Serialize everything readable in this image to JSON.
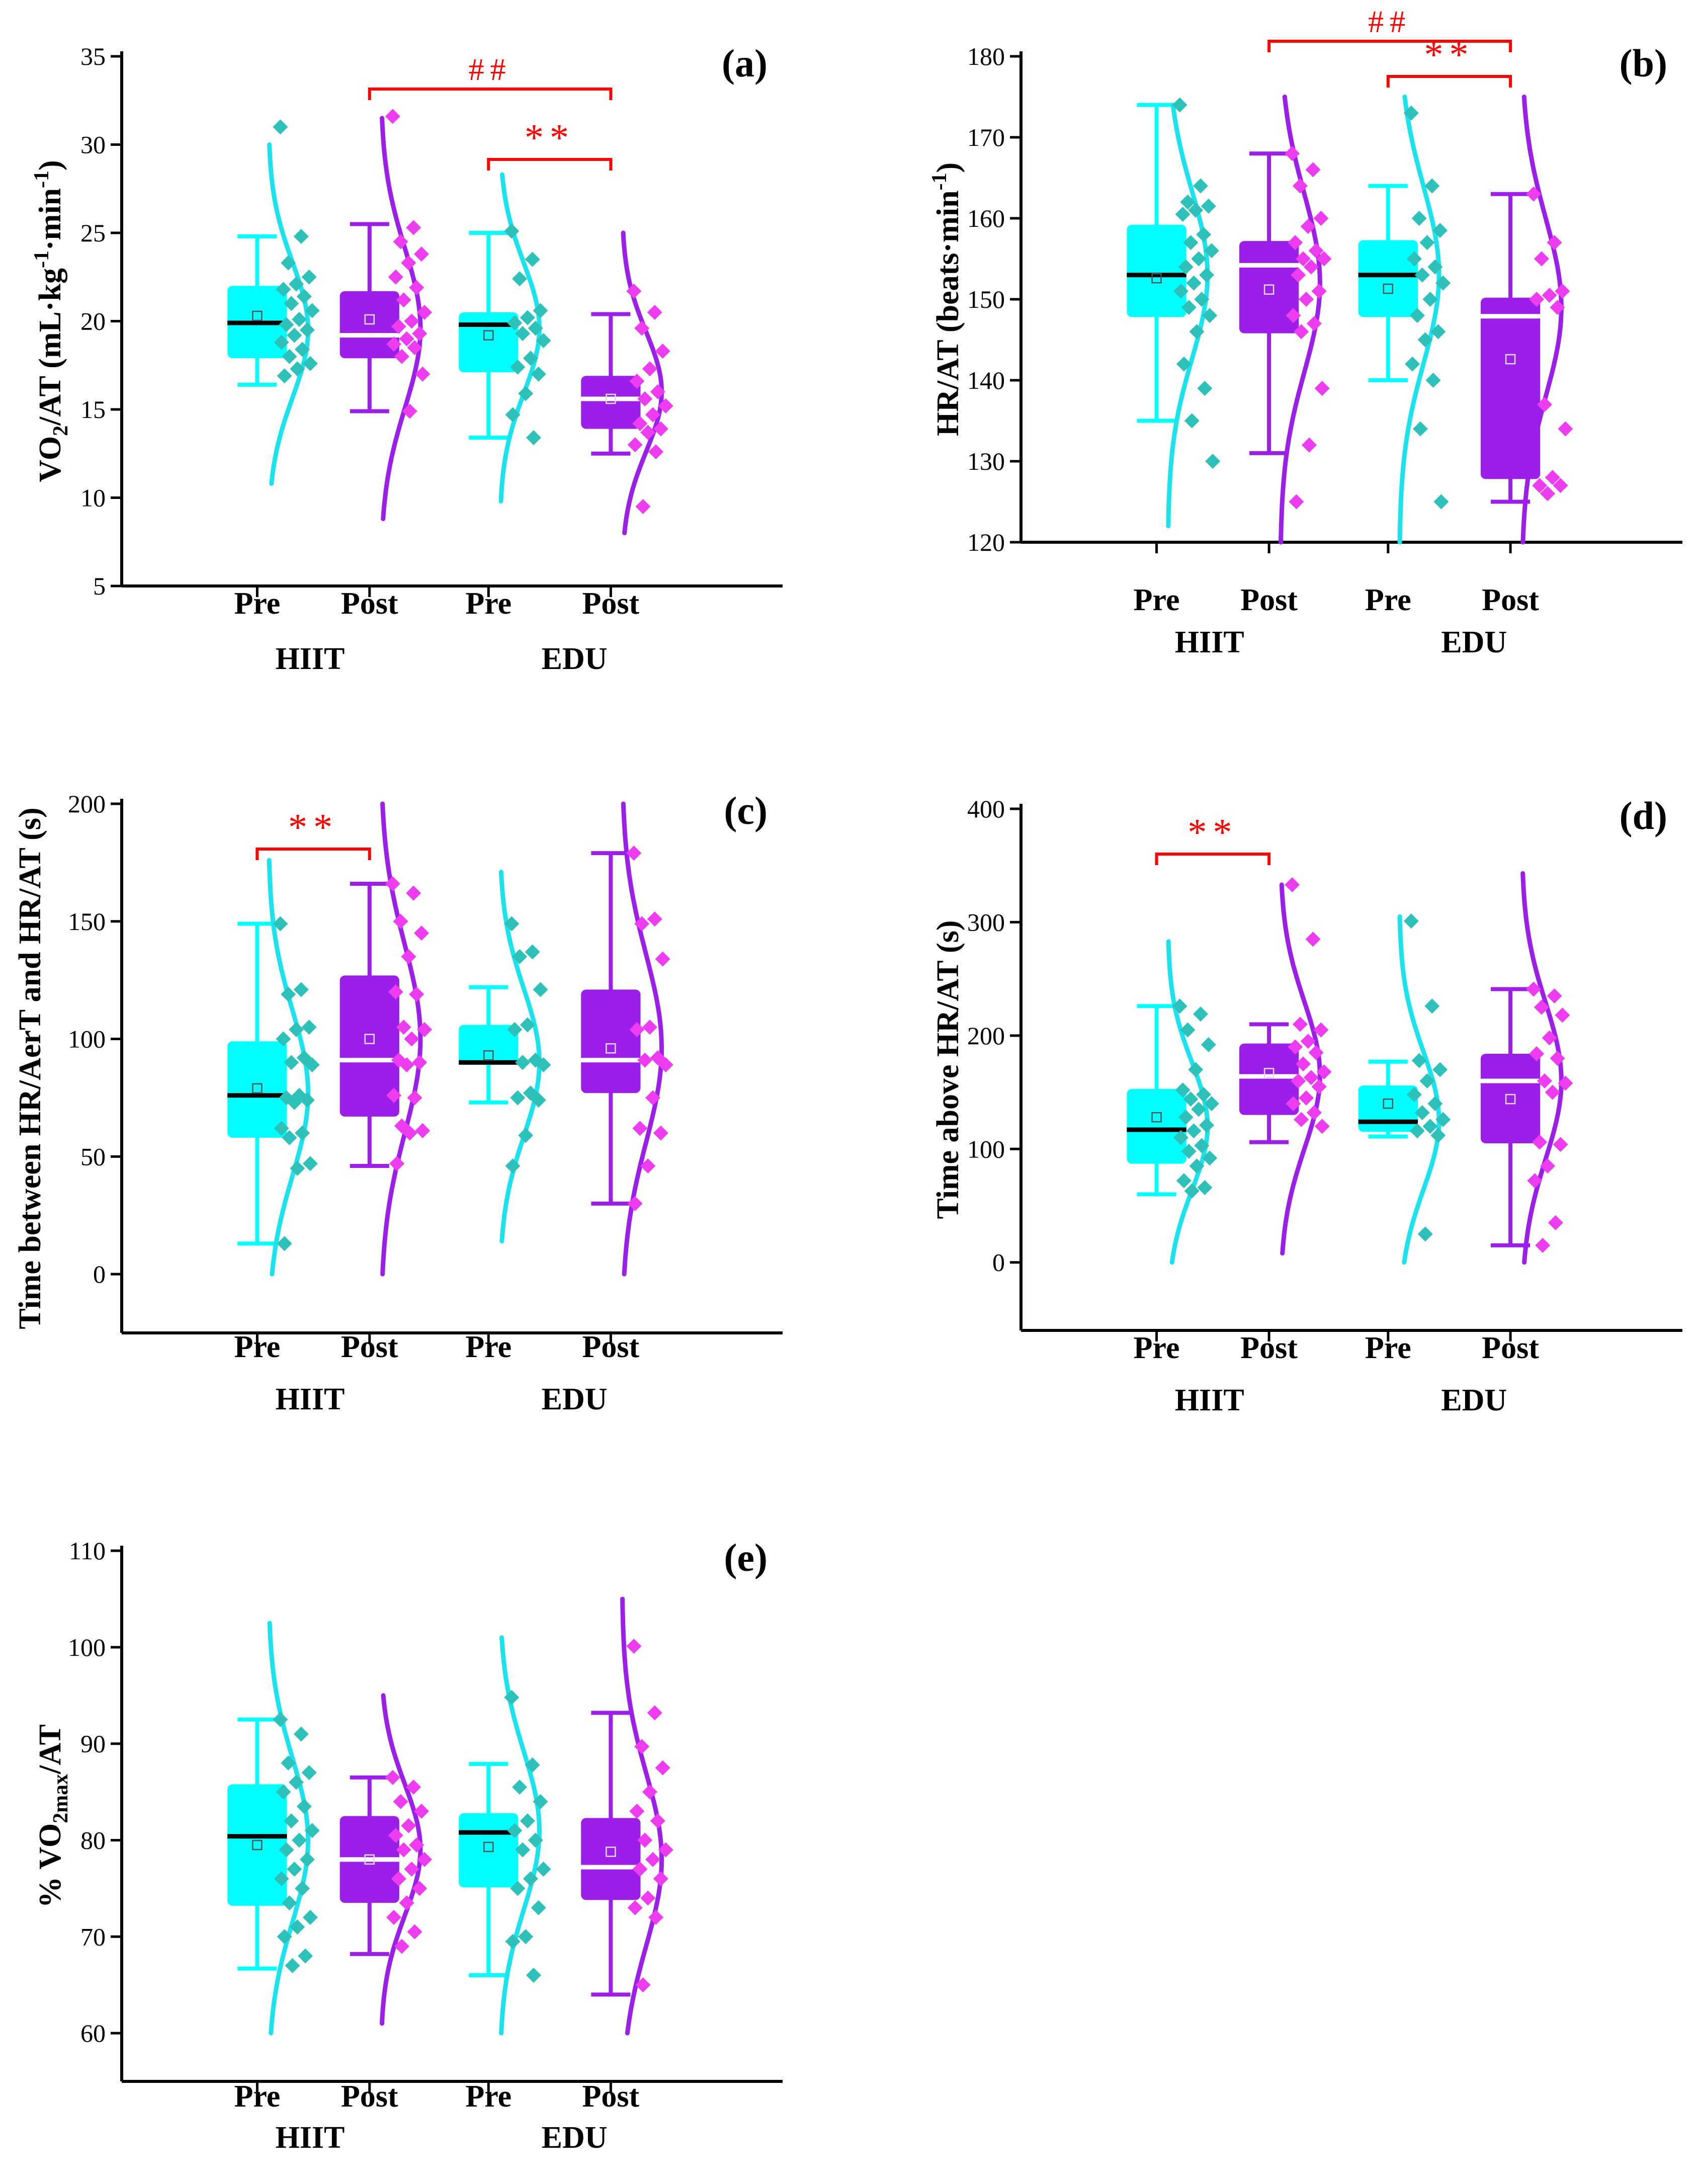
{
  "figure": {
    "category_labels": [
      "Pre",
      "Post",
      "Pre",
      "Post"
    ],
    "group_labels": [
      "HIIT",
      "EDU"
    ],
    "colors": {
      "pre_box": "#00ffff",
      "pre_curve": "#1ae3ee",
      "pre_points": "#2ec1b9",
      "post_box": "#9b1fe8",
      "post_curve": "#9b1fe8",
      "post_points": "#ee3df0",
      "bracket": "#ff0000",
      "pre_median": "#000000",
      "post_median": "#ffffff"
    }
  },
  "chart_data": [
    {
      "panel": "(a)",
      "type": "box",
      "ylabel_main": "VO",
      "ylabel_sub": "2",
      "ylabel_rest": "/AT (mL·kg",
      "ylabel_sup1": "-1",
      "ylabel_mid": "·min",
      "ylabel_sup2": "-1",
      "ylabel_end": ")",
      "ylim": [
        5,
        35
      ],
      "yticks": [
        5,
        10,
        15,
        20,
        25,
        30,
        35
      ],
      "boxes": [
        {
          "q1": 17.9,
          "q3": 22.0,
          "median": 19.9,
          "mean": 20.3,
          "whisker_low": 16.4,
          "whisker_high": 24.8,
          "points": [
            31.0,
            24.8,
            23.3,
            22.5,
            22.1,
            21.8,
            21.4,
            21.0,
            20.6,
            20.1,
            19.8,
            19.5,
            19.2,
            18.8,
            18.4,
            18.0,
            17.6,
            17.3,
            16.9
          ],
          "curve_range": [
            10.8,
            30.0
          ],
          "curve_peak": 19.5
        },
        {
          "q1": 17.9,
          "q3": 21.7,
          "median": 19.2,
          "mean": 20.1,
          "whisker_low": 14.9,
          "whisker_high": 25.5,
          "points": [
            31.6,
            25.3,
            24.5,
            23.8,
            23.3,
            22.5,
            21.9,
            21.2,
            20.5,
            20.0,
            19.7,
            19.3,
            19.0,
            18.7,
            18.5,
            18.0,
            17.0,
            14.9
          ],
          "curve_range": [
            8.8,
            31.5
          ],
          "curve_peak": 19.6
        },
        {
          "q1": 17.1,
          "q3": 20.5,
          "median": 19.8,
          "mean": 19.2,
          "whisker_low": 13.4,
          "whisker_high": 25.0,
          "points": [
            25.1,
            23.5,
            22.4,
            20.6,
            20.2,
            19.9,
            19.6,
            19.3,
            18.9,
            17.9,
            17.4,
            17.0,
            15.9,
            14.7,
            13.4
          ],
          "curve_range": [
            9.8,
            28.3
          ],
          "curve_peak": 19.6
        },
        {
          "q1": 13.9,
          "q3": 16.9,
          "median": 15.6,
          "mean": 15.6,
          "whisker_low": 12.5,
          "whisker_high": 20.4,
          "points": [
            21.7,
            20.5,
            19.6,
            18.3,
            17.3,
            16.6,
            16.0,
            15.6,
            15.2,
            14.7,
            14.2,
            13.9,
            13.7,
            13.0,
            12.6,
            9.5
          ],
          "curve_range": [
            8.0,
            25.0
          ],
          "curve_peak": 16.0
        }
      ],
      "brackets": [
        {
          "from": 1,
          "to": 3,
          "label": "##"
        },
        {
          "from": 2,
          "to": 3,
          "label": "**"
        }
      ]
    },
    {
      "panel": "(b)",
      "type": "box",
      "ylabel_main": "HR/AT (beats·min",
      "ylabel_sup1": "-1",
      "ylabel_end": ")",
      "ylim": [
        120,
        180
      ],
      "yticks": [
        120,
        130,
        140,
        150,
        160,
        170,
        180
      ],
      "boxes": [
        {
          "q1": 147.8,
          "q3": 159.2,
          "median": 153.0,
          "mean": 152.6,
          "whisker_low": 135.0,
          "whisker_high": 174.0,
          "points": [
            174.0,
            164.0,
            162.0,
            161.5,
            161.0,
            160.5,
            158.0,
            157.0,
            156.0,
            155.0,
            154.0,
            153.0,
            152.0,
            151.0,
            150.0,
            149.0,
            148.0,
            146.0,
            142.0,
            139.0,
            135.0,
            130.0
          ],
          "curve_range": [
            122.0,
            174.0
          ],
          "curve_peak": 153.0
        },
        {
          "q1": 145.8,
          "q3": 157.2,
          "median": 154.2,
          "mean": 151.2,
          "whisker_low": 131.0,
          "whisker_high": 168.0,
          "points": [
            168.0,
            166.0,
            164.0,
            160.0,
            159.0,
            157.0,
            156.0,
            155.0,
            155.0,
            154.0,
            153.0,
            151.0,
            150.0,
            148.0,
            147.0,
            146.0,
            139.0,
            132.0,
            125.0
          ],
          "curve_range": [
            120.0,
            175.0
          ],
          "curve_peak": 152.0
        },
        {
          "q1": 147.8,
          "q3": 157.3,
          "median": 153.0,
          "mean": 151.3,
          "whisker_low": 140.0,
          "whisker_high": 164.0,
          "points": [
            173.0,
            164.0,
            160.0,
            158.5,
            157.0,
            155.0,
            154.0,
            153.0,
            152.0,
            150.0,
            148.0,
            146.0,
            145.0,
            142.0,
            140.0,
            134.0,
            125.0
          ],
          "curve_range": [
            120.0,
            175.0
          ],
          "curve_peak": 153.0
        },
        {
          "q1": 127.8,
          "q3": 150.2,
          "median": 147.9,
          "mean": 142.6,
          "whisker_low": 125.0,
          "whisker_high": 163.0,
          "points": [
            163.0,
            157.0,
            155.0,
            151.0,
            150.5,
            150.0,
            149.0,
            137.0,
            134.0,
            128.0,
            127.0,
            127.0,
            126.0
          ],
          "curve_range": [
            120.0,
            175.0
          ],
          "curve_peak": 149.0
        }
      ],
      "brackets": [
        {
          "from": 1,
          "to": 3,
          "label": "##"
        },
        {
          "from": 2,
          "to": 3,
          "label": "**"
        }
      ]
    },
    {
      "panel": "(c)",
      "type": "box",
      "ylabel_main": "Time between HR/AerT and HR/AT (s)",
      "ylim": [
        -25,
        200
      ],
      "yticks": [
        0,
        50,
        100,
        150,
        200
      ],
      "boxes": [
        {
          "q1": 58.0,
          "q3": 99.0,
          "median": 76.0,
          "mean": 79.0,
          "whisker_low": 13.0,
          "whisker_high": 149.0,
          "points": [
            149.0,
            121.0,
            119.0,
            105.0,
            104.0,
            100.0,
            92.0,
            90.0,
            89.0,
            76.0,
            75.0,
            74.0,
            73.0,
            62.0,
            60.0,
            58.0,
            47.0,
            45.0,
            13.0
          ],
          "curve_range": [
            0.0,
            176.0
          ],
          "curve_peak": 77.0
        },
        {
          "q1": 67.0,
          "q3": 127.0,
          "median": 91.0,
          "mean": 100.0,
          "whisker_low": 46.0,
          "whisker_high": 166.0,
          "points": [
            166.0,
            162.0,
            150.0,
            145.0,
            135.0,
            120.0,
            119.0,
            105.0,
            104.0,
            100.0,
            91.0,
            90.0,
            89.0,
            76.0,
            75.0,
            63.0,
            61.0,
            60.0,
            47.0
          ],
          "curve_range": [
            0.0,
            200.0
          ],
          "curve_peak": 100.0
        },
        {
          "q1": 89.0,
          "q3": 106.0,
          "median": 90.0,
          "mean": 93.0,
          "whisker_low": 73.0,
          "whisker_high": 122.0,
          "points": [
            149.0,
            137.0,
            135.0,
            121.0,
            106.0,
            104.0,
            91.0,
            90.0,
            89.0,
            77.0,
            75.0,
            74.0,
            59.0,
            46.0
          ],
          "curve_range": [
            14.0,
            171.0
          ],
          "curve_peak": 90.0
        },
        {
          "q1": 77.0,
          "q3": 121.0,
          "median": 91.0,
          "mean": 96.0,
          "whisker_low": 30.0,
          "whisker_high": 179.0,
          "points": [
            179.0,
            151.0,
            149.0,
            134.0,
            105.0,
            104.0,
            92.0,
            91.0,
            89.0,
            75.0,
            62.0,
            60.0,
            46.0,
            30.0
          ],
          "curve_range": [
            0.0,
            200.0
          ],
          "curve_peak": 96.0
        }
      ],
      "brackets": [
        {
          "from": 0,
          "to": 1,
          "label": "**"
        }
      ]
    },
    {
      "panel": "(d)",
      "type": "box",
      "ylabel_main": "Time above HR/AT (s)",
      "ylim": [
        -60,
        400
      ],
      "yticks": [
        0,
        100,
        200,
        300,
        400
      ],
      "boxes": [
        {
          "q1": 87.0,
          "q3": 153.0,
          "median": 117.0,
          "mean": 128.0,
          "whisker_low": 60.0,
          "whisker_high": 226.0,
          "points": [
            226.0,
            219.0,
            205.0,
            192.0,
            170.0,
            152.0,
            148.0,
            144.0,
            140.0,
            135.0,
            128.0,
            121.0,
            116.0,
            110.0,
            103.0,
            98.0,
            92.0,
            85.0,
            72.0,
            66.0,
            63.0
          ],
          "curve_range": [
            0.0,
            283.0
          ],
          "curve_peak": 120.0
        },
        {
          "q1": 130.0,
          "q3": 193.0,
          "median": 164.0,
          "mean": 167.0,
          "whisker_low": 106.0,
          "whisker_high": 210.0,
          "points": [
            333.0,
            285.0,
            210.0,
            205.0,
            195.0,
            190.0,
            185.0,
            175.0,
            168.0,
            163.0,
            160.0,
            155.0,
            145.0,
            140.0,
            132.0,
            126.0,
            120.0
          ],
          "curve_range": [
            8.0,
            333.0
          ],
          "curve_peak": 165.0
        },
        {
          "q1": 115.0,
          "q3": 156.0,
          "median": 124.0,
          "mean": 140.0,
          "whisker_low": 111.0,
          "whisker_high": 177.0,
          "points": [
            301.0,
            226.0,
            178.0,
            170.0,
            160.0,
            148.0,
            140.0,
            132.0,
            126.0,
            120.0,
            116.0,
            112.0,
            25.0
          ],
          "curve_range": [
            0.0,
            305.0
          ],
          "curve_peak": 125.0
        },
        {
          "q1": 105.0,
          "q3": 184.0,
          "median": 160.0,
          "mean": 144.0,
          "whisker_low": 15.0,
          "whisker_high": 241.0,
          "points": [
            241.0,
            235.0,
            225.0,
            218.0,
            198.0,
            184.0,
            180.0,
            160.0,
            158.0,
            150.0,
            106.0,
            104.0,
            85.0,
            72.0,
            35.0,
            15.0
          ],
          "curve_range": [
            0.0,
            343.0
          ],
          "curve_peak": 160.0
        }
      ],
      "brackets": [
        {
          "from": 0,
          "to": 1,
          "label": "**"
        }
      ]
    },
    {
      "panel": "(e)",
      "type": "box",
      "ylabel_main": "% VO",
      "ylabel_sub": "2max",
      "ylabel_end": "/AT",
      "ylim": [
        55,
        110
      ],
      "yticks": [
        60,
        70,
        80,
        90,
        100,
        110
      ],
      "boxes": [
        {
          "q1": 73.2,
          "q3": 85.8,
          "median": 80.4,
          "mean": 79.5,
          "whisker_low": 66.7,
          "whisker_high": 92.5,
          "points": [
            92.5,
            91.0,
            88.0,
            87.0,
            86.0,
            85.0,
            83.5,
            82.0,
            81.0,
            80.0,
            79.0,
            78.0,
            77.0,
            76.0,
            75.0,
            73.5,
            72.0,
            71.0,
            70.0,
            68.0,
            67.0
          ],
          "curve_range": [
            60.0,
            102.5
          ],
          "curve_peak": 80.0
        },
        {
          "q1": 73.5,
          "q3": 82.5,
          "median": 78.0,
          "mean": 78.0,
          "whisker_low": 68.2,
          "whisker_high": 86.5,
          "points": [
            86.5,
            85.5,
            84.0,
            83.0,
            81.5,
            80.5,
            79.5,
            79.0,
            78.0,
            77.0,
            76.0,
            75.0,
            73.5,
            72.0,
            70.5,
            69.0
          ],
          "curve_range": [
            61.0,
            95.0
          ],
          "curve_peak": 79.0
        },
        {
          "q1": 75.1,
          "q3": 82.8,
          "median": 80.8,
          "mean": 79.3,
          "whisker_low": 66.0,
          "whisker_high": 87.9,
          "points": [
            94.8,
            87.8,
            85.5,
            84.0,
            82.0,
            81.0,
            80.0,
            79.0,
            77.0,
            76.0,
            75.0,
            73.0,
            70.0,
            69.5,
            66.0
          ],
          "curve_range": [
            60.0,
            101.0
          ],
          "curve_peak": 81.0
        },
        {
          "q1": 73.8,
          "q3": 82.3,
          "median": 77.2,
          "mean": 78.8,
          "whisker_low": 64.0,
          "whisker_high": 93.2,
          "points": [
            100.1,
            93.2,
            89.7,
            87.5,
            85.0,
            83.0,
            82.0,
            80.0,
            79.0,
            78.0,
            77.0,
            76.0,
            74.0,
            73.0,
            72.0,
            65.0
          ],
          "curve_range": [
            60.0,
            105.0
          ],
          "curve_peak": 78.0
        }
      ],
      "brackets": []
    }
  ]
}
